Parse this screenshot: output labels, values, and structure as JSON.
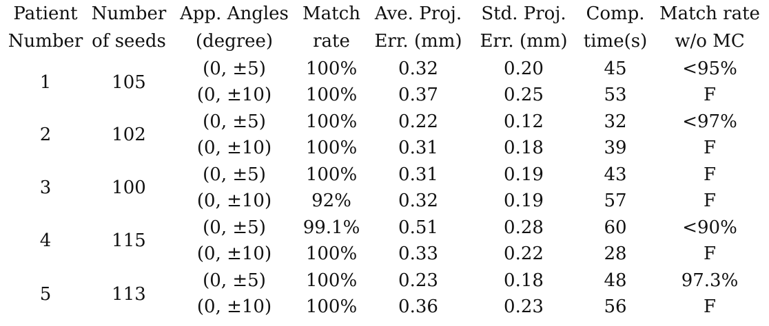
{
  "table": {
    "headers": [
      [
        "Patient",
        "Number"
      ],
      [
        "Number",
        "of seeds"
      ],
      [
        "App. Angles",
        "(degree)"
      ],
      [
        "Match",
        "rate"
      ],
      [
        "Ave. Proj.",
        "Err. (mm)"
      ],
      [
        "Std. Proj.",
        "Err. (mm)"
      ],
      [
        "Comp.",
        "time(s)"
      ],
      [
        "Match rate",
        "w/o MC"
      ]
    ],
    "patients": [
      {
        "patient": "1",
        "seeds": "105",
        "rows": [
          {
            "angles": "(0, ±5)",
            "match_rate": "100%",
            "ave_err": "0.32",
            "std_err": "0.20",
            "time": "45",
            "match_wo_mc": "<95%"
          },
          {
            "angles": "(0, ±10)",
            "match_rate": "100%",
            "ave_err": "0.37",
            "std_err": "0.25",
            "time": "53",
            "match_wo_mc": "F"
          }
        ]
      },
      {
        "patient": "2",
        "seeds": "102",
        "rows": [
          {
            "angles": "(0, ±5)",
            "match_rate": "100%",
            "ave_err": "0.22",
            "std_err": "0.12",
            "time": "32",
            "match_wo_mc": "<97%"
          },
          {
            "angles": "(0, ±10)",
            "match_rate": "100%",
            "ave_err": "0.31",
            "std_err": "0.18",
            "time": "39",
            "match_wo_mc": "F"
          }
        ]
      },
      {
        "patient": "3",
        "seeds": "100",
        "rows": [
          {
            "angles": "(0, ±5)",
            "match_rate": "100%",
            "ave_err": "0.31",
            "std_err": "0.19",
            "time": "43",
            "match_wo_mc": "F"
          },
          {
            "angles": "(0, ±10)",
            "match_rate": "92%",
            "ave_err": "0.32",
            "std_err": "0.19",
            "time": "57",
            "match_wo_mc": "F"
          }
        ]
      },
      {
        "patient": "4",
        "seeds": "115",
        "rows": [
          {
            "angles": "(0, ±5)",
            "match_rate": "99.1%",
            "ave_err": "0.51",
            "std_err": "0.28",
            "time": "60",
            "match_wo_mc": "<90%"
          },
          {
            "angles": "(0, ±10)",
            "match_rate": "100%",
            "ave_err": "0.33",
            "std_err": "0.22",
            "time": "28",
            "match_wo_mc": "F"
          }
        ]
      },
      {
        "patient": "5",
        "seeds": "113",
        "rows": [
          {
            "angles": "(0, ±5)",
            "match_rate": "100%",
            "ave_err": "0.23",
            "std_err": "0.18",
            "time": "48",
            "match_wo_mc": "97.3%"
          },
          {
            "angles": "(0, ±10)",
            "match_rate": "100%",
            "ave_err": "0.36",
            "std_err": "0.23",
            "time": "56",
            "match_wo_mc": "F"
          }
        ]
      }
    ]
  }
}
